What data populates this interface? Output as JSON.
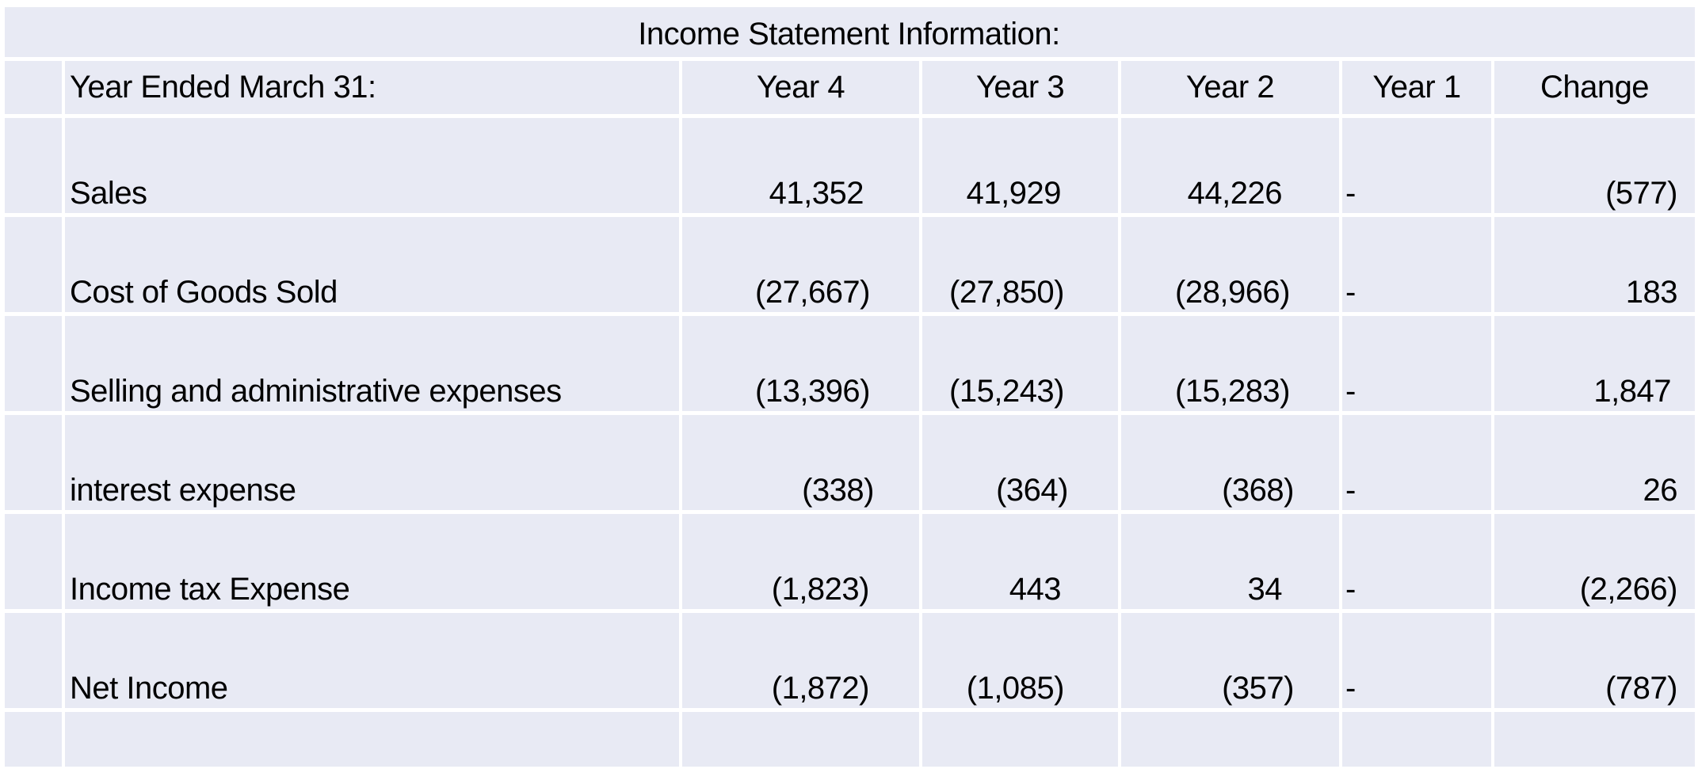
{
  "title": "Income Statement Information:",
  "header": {
    "label": "Year Ended March 31:",
    "columns": [
      "Year 4",
      "Year 3",
      "Year 2",
      "Year 1",
      "Change"
    ]
  },
  "rows": [
    {
      "label": "Sales",
      "values": [
        "41,352",
        "41,929",
        "44,226",
        "-",
        "(577)"
      ]
    },
    {
      "label": "Cost of Goods Sold",
      "values": [
        "(27,667)",
        "(27,850)",
        "(28,966)",
        "-",
        "183"
      ]
    },
    {
      "label": "Selling and administrative expenses",
      "values": [
        "(13,396)",
        "(15,243)",
        "(15,283)",
        "-",
        "1,847"
      ]
    },
    {
      "label": "interest expense",
      "values": [
        "(338)",
        "(364)",
        "(368)",
        "-",
        "26"
      ]
    },
    {
      "label": "Income tax Expense",
      "values": [
        "(1,823)",
        "443",
        "34",
        "-",
        "(2,266)"
      ]
    },
    {
      "label": "Net Income",
      "values": [
        "(1,872)",
        "(1,085)",
        "(357)",
        "-",
        "(787)"
      ]
    }
  ],
  "colors": {
    "cell_background": "#e8eaf4",
    "gridline": "#ffffff",
    "text": "#000000"
  }
}
